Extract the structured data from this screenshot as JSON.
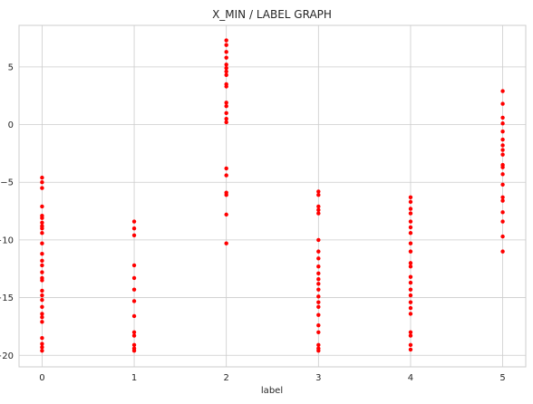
{
  "chart_data": {
    "type": "scatter",
    "title": "X_MIN / LABEL GRAPH",
    "xlabel": "label",
    "ylabel": "",
    "xlim": [
      -0.25,
      5.25
    ],
    "ylim": [
      -21.0,
      8.6
    ],
    "xticks": [
      0,
      1,
      2,
      3,
      4,
      5
    ],
    "yticks": [
      5,
      0,
      -5,
      -10,
      -15,
      -20
    ],
    "grid": true,
    "marker_color": "#ff0000",
    "series": [
      {
        "points": [
          [
            0,
            -4.6
          ],
          [
            0,
            -5.0
          ],
          [
            0,
            -5.5
          ],
          [
            0,
            -7.1
          ],
          [
            0,
            -7.9
          ],
          [
            0,
            -8.1
          ],
          [
            0,
            -8.5
          ],
          [
            0,
            -8.8
          ],
          [
            0,
            -9.0
          ],
          [
            0,
            -9.4
          ],
          [
            0,
            -10.3
          ],
          [
            0,
            -11.2
          ],
          [
            0,
            -11.8
          ],
          [
            0,
            -12.2
          ],
          [
            0,
            -12.8
          ],
          [
            0,
            -13.3
          ],
          [
            0,
            -13.5
          ],
          [
            0,
            -14.4
          ],
          [
            0,
            -14.8
          ],
          [
            0,
            -15.2
          ],
          [
            0,
            -15.8
          ],
          [
            0,
            -16.4
          ],
          [
            0,
            -16.7
          ],
          [
            0,
            -17.1
          ],
          [
            0,
            -18.5
          ],
          [
            0,
            -19.0
          ],
          [
            0,
            -19.3
          ],
          [
            0,
            -19.6
          ],
          [
            1,
            -8.4
          ],
          [
            1,
            -9.0
          ],
          [
            1,
            -9.6
          ],
          [
            1,
            -12.2
          ],
          [
            1,
            -13.3
          ],
          [
            1,
            -14.3
          ],
          [
            1,
            -15.3
          ],
          [
            1,
            -16.6
          ],
          [
            1,
            -18.0
          ],
          [
            1,
            -18.3
          ],
          [
            1,
            -19.1
          ],
          [
            1,
            -19.4
          ],
          [
            1,
            -19.6
          ],
          [
            2,
            7.3
          ],
          [
            2,
            6.9
          ],
          [
            2,
            6.3
          ],
          [
            2,
            5.8
          ],
          [
            2,
            5.2
          ],
          [
            2,
            4.9
          ],
          [
            2,
            4.6
          ],
          [
            2,
            4.3
          ],
          [
            2,
            3.5
          ],
          [
            2,
            3.3
          ],
          [
            2,
            1.9
          ],
          [
            2,
            1.6
          ],
          [
            2,
            1.0
          ],
          [
            2,
            0.5
          ],
          [
            2,
            0.2
          ],
          [
            2,
            -3.8
          ],
          [
            2,
            -4.4
          ],
          [
            2,
            -5.9
          ],
          [
            2,
            -6.1
          ],
          [
            2,
            -7.8
          ],
          [
            2,
            -10.3
          ],
          [
            3,
            -5.8
          ],
          [
            3,
            -6.1
          ],
          [
            3,
            -7.1
          ],
          [
            3,
            -7.4
          ],
          [
            3,
            -7.7
          ],
          [
            3,
            -10.0
          ],
          [
            3,
            -11.0
          ],
          [
            3,
            -11.6
          ],
          [
            3,
            -12.3
          ],
          [
            3,
            -12.9
          ],
          [
            3,
            -13.4
          ],
          [
            3,
            -13.8
          ],
          [
            3,
            -14.3
          ],
          [
            3,
            -14.9
          ],
          [
            3,
            -15.4
          ],
          [
            3,
            -15.8
          ],
          [
            3,
            -16.5
          ],
          [
            3,
            -17.4
          ],
          [
            3,
            -18.0
          ],
          [
            3,
            -19.1
          ],
          [
            3,
            -19.4
          ],
          [
            3,
            -19.6
          ],
          [
            4,
            -6.3
          ],
          [
            4,
            -6.7
          ],
          [
            4,
            -7.3
          ],
          [
            4,
            -7.7
          ],
          [
            4,
            -8.4
          ],
          [
            4,
            -8.9
          ],
          [
            4,
            -9.4
          ],
          [
            4,
            -10.3
          ],
          [
            4,
            -11.0
          ],
          [
            4,
            -12.0
          ],
          [
            4,
            -12.3
          ],
          [
            4,
            -13.2
          ],
          [
            4,
            -13.7
          ],
          [
            4,
            -14.3
          ],
          [
            4,
            -14.8
          ],
          [
            4,
            -15.4
          ],
          [
            4,
            -15.9
          ],
          [
            4,
            -16.4
          ],
          [
            4,
            -18.0
          ],
          [
            4,
            -18.3
          ],
          [
            4,
            -19.1
          ],
          [
            4,
            -19.5
          ],
          [
            5,
            2.9
          ],
          [
            5,
            1.8
          ],
          [
            5,
            0.6
          ],
          [
            5,
            0.1
          ],
          [
            5,
            -0.6
          ],
          [
            5,
            -1.3
          ],
          [
            5,
            -1.8
          ],
          [
            5,
            -2.2
          ],
          [
            5,
            -2.6
          ],
          [
            5,
            -3.5
          ],
          [
            5,
            -3.7
          ],
          [
            5,
            -4.3
          ],
          [
            5,
            -5.2
          ],
          [
            5,
            -6.3
          ],
          [
            5,
            -6.6
          ],
          [
            5,
            -7.6
          ],
          [
            5,
            -8.4
          ],
          [
            5,
            -9.7
          ],
          [
            5,
            -11.0
          ]
        ]
      }
    ]
  }
}
